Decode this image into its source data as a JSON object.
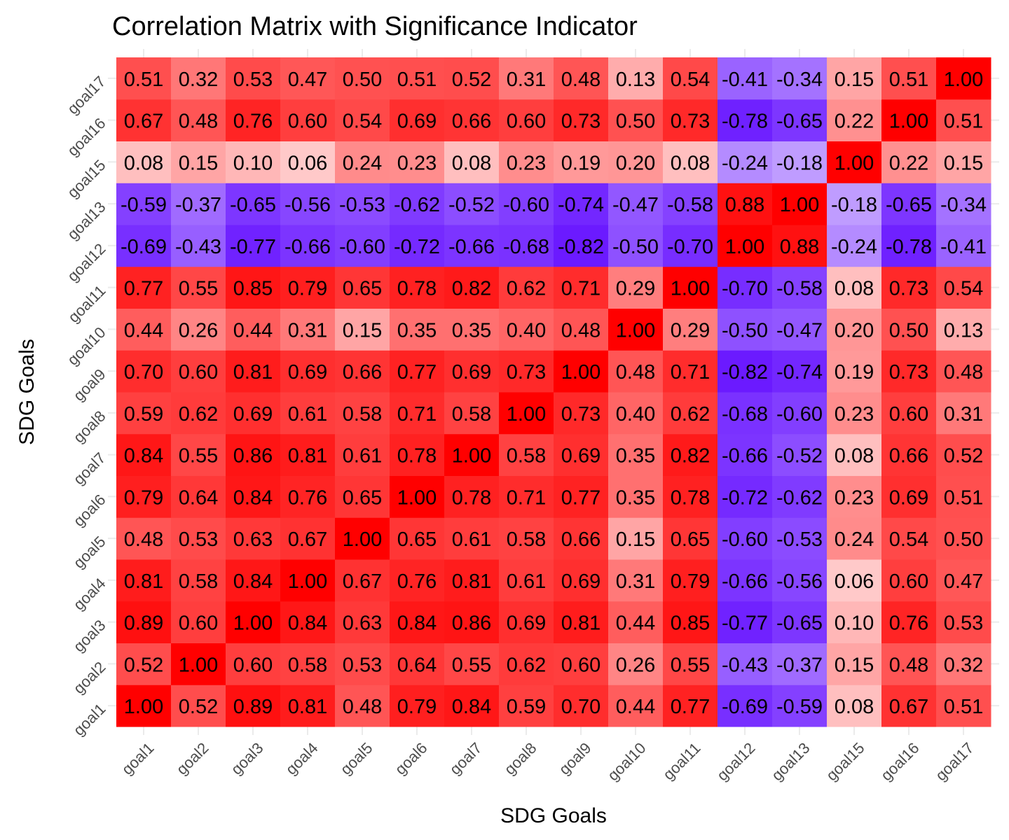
{
  "chart_data": {
    "type": "heatmap",
    "title": "Correlation Matrix with Significance Indicator",
    "xlabel": "SDG Goals",
    "ylabel": "SDG Goals",
    "x_categories": [
      "goal1",
      "goal2",
      "goal3",
      "goal4",
      "goal5",
      "goal6",
      "goal7",
      "goal8",
      "goal9",
      "goal10",
      "goal11",
      "goal12",
      "goal13",
      "goal15",
      "goal16",
      "goal17"
    ],
    "y_categories": [
      "goal1",
      "goal2",
      "goal3",
      "goal4",
      "goal5",
      "goal6",
      "goal7",
      "goal8",
      "goal9",
      "goal10",
      "goal11",
      "goal12",
      "goal13",
      "goal15",
      "goal16",
      "goal17"
    ],
    "color_scale": {
      "low": "#0000ff",
      "mid": "#ffffff",
      "high": "#ff0000",
      "domain": [
        -1,
        0,
        1
      ]
    },
    "grid": true,
    "legend": "none",
    "values": [
      [
        1.0,
        0.52,
        0.89,
        0.81,
        0.48,
        0.79,
        0.84,
        0.59,
        0.7,
        0.44,
        0.77,
        -0.69,
        -0.59,
        0.08,
        0.67,
        0.51
      ],
      [
        0.52,
        1.0,
        0.6,
        0.58,
        0.53,
        0.64,
        0.55,
        0.62,
        0.6,
        0.26,
        0.55,
        -0.43,
        -0.37,
        0.15,
        0.48,
        0.32
      ],
      [
        0.89,
        0.6,
        1.0,
        0.84,
        0.63,
        0.84,
        0.86,
        0.69,
        0.81,
        0.44,
        0.85,
        -0.77,
        -0.65,
        0.1,
        0.76,
        0.53
      ],
      [
        0.81,
        0.58,
        0.84,
        1.0,
        0.67,
        0.76,
        0.81,
        0.61,
        0.69,
        0.31,
        0.79,
        -0.66,
        -0.56,
        0.06,
        0.6,
        0.47
      ],
      [
        0.48,
        0.53,
        0.63,
        0.67,
        1.0,
        0.65,
        0.61,
        0.58,
        0.66,
        0.15,
        0.65,
        -0.6,
        -0.53,
        0.24,
        0.54,
        0.5
      ],
      [
        0.79,
        0.64,
        0.84,
        0.76,
        0.65,
        1.0,
        0.78,
        0.71,
        0.77,
        0.35,
        0.78,
        -0.72,
        -0.62,
        0.23,
        0.69,
        0.51
      ],
      [
        0.84,
        0.55,
        0.86,
        0.81,
        0.61,
        0.78,
        1.0,
        0.58,
        0.69,
        0.35,
        0.82,
        -0.66,
        -0.52,
        0.08,
        0.66,
        0.52
      ],
      [
        0.59,
        0.62,
        0.69,
        0.61,
        0.58,
        0.71,
        0.58,
        1.0,
        0.73,
        0.4,
        0.62,
        -0.68,
        -0.6,
        0.23,
        0.6,
        0.31
      ],
      [
        0.7,
        0.6,
        0.81,
        0.69,
        0.66,
        0.77,
        0.69,
        0.73,
        1.0,
        0.48,
        0.71,
        -0.82,
        -0.74,
        0.19,
        0.73,
        0.48
      ],
      [
        0.44,
        0.26,
        0.44,
        0.31,
        0.15,
        0.35,
        0.35,
        0.4,
        0.48,
        1.0,
        0.29,
        -0.5,
        -0.47,
        0.2,
        0.5,
        0.13
      ],
      [
        0.77,
        0.55,
        0.85,
        0.79,
        0.65,
        0.78,
        0.82,
        0.62,
        0.71,
        0.29,
        1.0,
        -0.7,
        -0.58,
        0.08,
        0.73,
        0.54
      ],
      [
        -0.69,
        -0.43,
        -0.77,
        -0.66,
        -0.6,
        -0.72,
        -0.66,
        -0.68,
        -0.82,
        -0.5,
        -0.7,
        1.0,
        0.88,
        -0.24,
        -0.78,
        -0.41
      ],
      [
        -0.59,
        -0.37,
        -0.65,
        -0.56,
        -0.53,
        -0.62,
        -0.52,
        -0.6,
        -0.74,
        -0.47,
        -0.58,
        0.88,
        1.0,
        -0.18,
        -0.65,
        -0.34
      ],
      [
        0.08,
        0.15,
        0.1,
        0.06,
        0.24,
        0.23,
        0.08,
        0.23,
        0.19,
        0.2,
        0.08,
        -0.24,
        -0.18,
        1.0,
        0.22,
        0.15
      ],
      [
        0.67,
        0.48,
        0.76,
        0.6,
        0.54,
        0.69,
        0.66,
        0.6,
        0.73,
        0.5,
        0.73,
        -0.78,
        -0.65,
        0.22,
        1.0,
        0.51
      ],
      [
        0.51,
        0.32,
        0.53,
        0.47,
        0.5,
        0.51,
        0.52,
        0.31,
        0.48,
        0.13,
        0.54,
        -0.41,
        -0.34,
        0.15,
        0.51,
        1.0
      ]
    ]
  }
}
